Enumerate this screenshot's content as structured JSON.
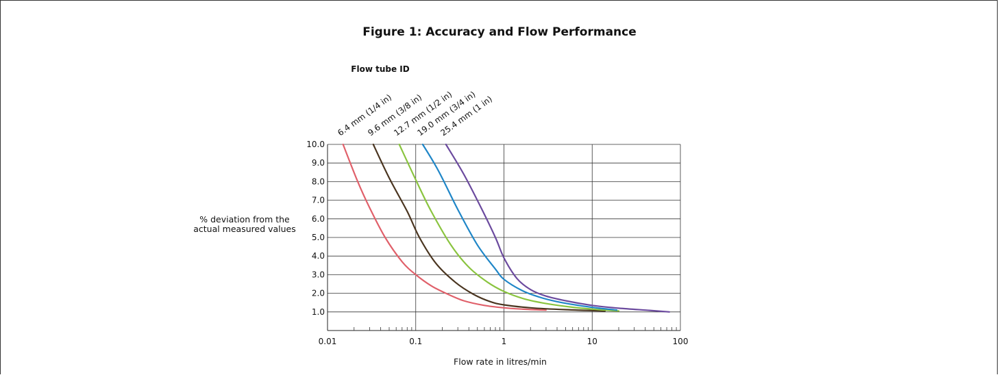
{
  "figure_title": "Figure 1: Accuracy and Flow Performance",
  "chart_data": {
    "type": "line",
    "title": "Figure 1: Accuracy and Flow Performance",
    "legend_title": "Flow tube ID",
    "xlabel": "Flow rate in litres/min",
    "ylabel": "% deviation from the actual measured values",
    "x_scale": "log",
    "xlim": [
      0.01,
      100
    ],
    "ylim": [
      0,
      10
    ],
    "x_ticks": [
      {
        "value": 0.01,
        "label": "0.01"
      },
      {
        "value": 0.1,
        "label": "0.1"
      },
      {
        "value": 1,
        "label": "1"
      },
      {
        "value": 10,
        "label": "10"
      },
      {
        "value": 100,
        "label": "100"
      }
    ],
    "y_ticks": [
      {
        "value": 1,
        "label": "1.0"
      },
      {
        "value": 2,
        "label": "2.0"
      },
      {
        "value": 3,
        "label": "3.0"
      },
      {
        "value": 4,
        "label": "4.0"
      },
      {
        "value": 5,
        "label": "5.0"
      },
      {
        "value": 6,
        "label": "6.0"
      },
      {
        "value": 7,
        "label": "7.0"
      },
      {
        "value": 8,
        "label": "8.0"
      },
      {
        "value": 9,
        "label": "9.0"
      },
      {
        "value": 10,
        "label": "10.0"
      }
    ],
    "grid": true,
    "legend_placement": "top-left, rotated labels above curves",
    "series": [
      {
        "name": "6.4 mm (1/4 in)",
        "color": "#e0606a",
        "points": [
          [
            0.015,
            10.0
          ],
          [
            0.022,
            8.0
          ],
          [
            0.03,
            6.6
          ],
          [
            0.045,
            5.0
          ],
          [
            0.07,
            3.7
          ],
          [
            0.1,
            3.0
          ],
          [
            0.15,
            2.4
          ],
          [
            0.22,
            2.0
          ],
          [
            0.35,
            1.6
          ],
          [
            0.6,
            1.35
          ],
          [
            1.0,
            1.22
          ],
          [
            1.6,
            1.15
          ],
          [
            3.0,
            1.1
          ]
        ]
      },
      {
        "name": "9.6 mm (3/8 in)",
        "color": "#4a3520",
        "points": [
          [
            0.033,
            10.0
          ],
          [
            0.05,
            8.2
          ],
          [
            0.08,
            6.4
          ],
          [
            0.11,
            5.0
          ],
          [
            0.17,
            3.6
          ],
          [
            0.28,
            2.6
          ],
          [
            0.45,
            1.95
          ],
          [
            0.7,
            1.55
          ],
          [
            1.0,
            1.38
          ],
          [
            2.0,
            1.22
          ],
          [
            5.0,
            1.12
          ],
          [
            14.0,
            1.05
          ]
        ]
      },
      {
        "name": "12.7 mm (1/2 in)",
        "color": "#8ac43f",
        "points": [
          [
            0.065,
            10.0
          ],
          [
            0.1,
            8.1
          ],
          [
            0.15,
            6.4
          ],
          [
            0.25,
            4.6
          ],
          [
            0.4,
            3.4
          ],
          [
            0.65,
            2.6
          ],
          [
            1.0,
            2.1
          ],
          [
            1.7,
            1.7
          ],
          [
            3.0,
            1.45
          ],
          [
            6.0,
            1.25
          ],
          [
            12.0,
            1.12
          ],
          [
            20.0,
            1.05
          ]
        ]
      },
      {
        "name": "19.0 mm (3/4 in)",
        "color": "#1f86c7",
        "points": [
          [
            0.12,
            10.0
          ],
          [
            0.18,
            8.6
          ],
          [
            0.3,
            6.5
          ],
          [
            0.5,
            4.6
          ],
          [
            0.8,
            3.3
          ],
          [
            1.0,
            2.75
          ],
          [
            1.6,
            2.15
          ],
          [
            2.5,
            1.8
          ],
          [
            4.0,
            1.55
          ],
          [
            7.0,
            1.35
          ],
          [
            12.0,
            1.2
          ],
          [
            19.0,
            1.1
          ]
        ]
      },
      {
        "name": "25.4 mm (1 in)",
        "color": "#6b4a9e",
        "points": [
          [
            0.22,
            10.0
          ],
          [
            0.35,
            8.4
          ],
          [
            0.55,
            6.6
          ],
          [
            0.8,
            5.0
          ],
          [
            1.0,
            3.9
          ],
          [
            1.4,
            2.8
          ],
          [
            2.0,
            2.2
          ],
          [
            3.0,
            1.85
          ],
          [
            5.0,
            1.6
          ],
          [
            10.0,
            1.35
          ],
          [
            20.0,
            1.2
          ],
          [
            45.0,
            1.08
          ],
          [
            75.0,
            1.0
          ]
        ]
      }
    ]
  }
}
